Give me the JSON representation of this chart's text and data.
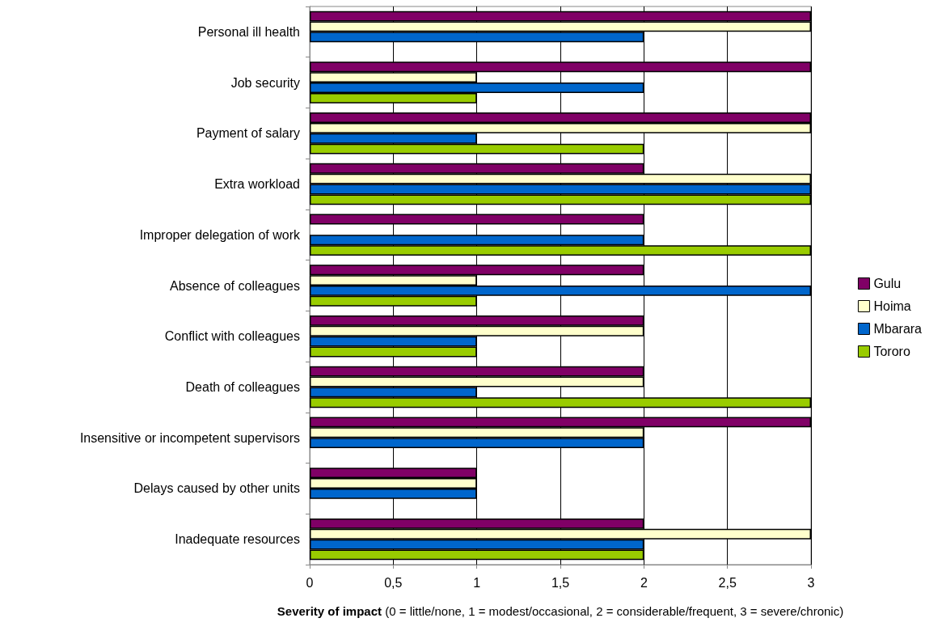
{
  "chart_data": {
    "type": "bar",
    "orientation": "horizontal",
    "xlabel": "Severity of impact (0 = little/none, 1 = modest/occasional, 2 = considerable/frequent, 3 = severe/chronic)",
    "categories": [
      "Personal ill health",
      "Job security",
      "Payment of salary",
      "Extra workload",
      "Improper delegation of work",
      "Absence of colleagues",
      "Conflict with colleagues",
      "Death of colleagues",
      "Insensitive or incompetent supervisors",
      "Delays caused by other units",
      "Inadequate resources"
    ],
    "series": [
      {
        "name": "Gulu",
        "color": "#800066",
        "values": [
          3,
          3,
          3,
          2,
          2,
          2,
          2,
          2,
          3,
          1,
          2
        ]
      },
      {
        "name": "Hoima",
        "color": "#ffffcc",
        "values": [
          3,
          1,
          3,
          3,
          null,
          1,
          2,
          2,
          2,
          1,
          3
        ]
      },
      {
        "name": "Mbarara",
        "color": "#0066cc",
        "values": [
          2,
          2,
          1,
          3,
          2,
          3,
          1,
          1,
          2,
          1,
          2
        ]
      },
      {
        "name": "Tororo",
        "color": "#99cc00",
        "values": [
          null,
          1,
          2,
          3,
          3,
          1,
          1,
          3,
          null,
          null,
          2
        ]
      }
    ],
    "xlim": [
      0,
      3
    ],
    "xticks": [
      0,
      {
        "value": 0.5,
        "label": "0,5"
      },
      1,
      {
        "value": 1.5,
        "label": "1,5"
      },
      2,
      {
        "value": 2.5,
        "label": "2,5"
      },
      3
    ],
    "grid": "x",
    "legend": "right"
  }
}
